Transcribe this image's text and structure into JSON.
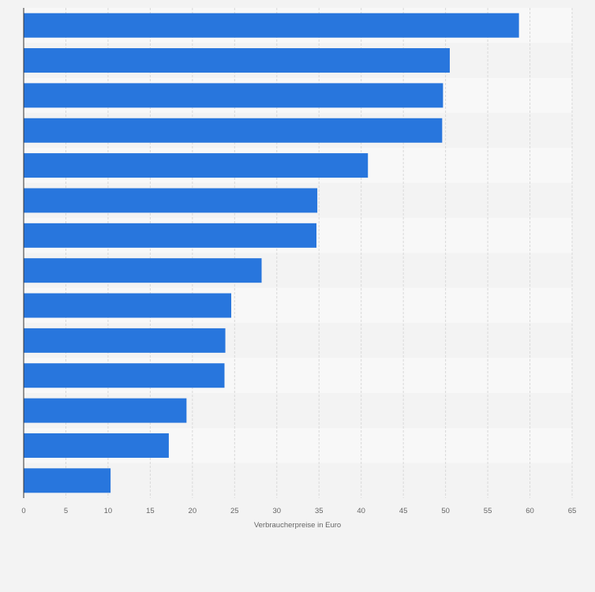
{
  "colors": {
    "bar": "#2876dd",
    "page_background": "#f3f3f3",
    "band_light": "#f8f8f8",
    "band_dark": "#f3f3f3",
    "gridline": "#d9d9d9",
    "axis_line": "#333333",
    "tick_label": "#666666"
  },
  "chart_data": {
    "type": "bar",
    "orientation": "horizontal",
    "values": [
      58.7,
      50.5,
      49.7,
      49.6,
      40.8,
      34.8,
      34.7,
      28.2,
      24.6,
      23.9,
      23.8,
      19.3,
      17.2,
      10.3
    ],
    "xlabel": "Verbraucherpreise in Euro",
    "xlim": [
      0,
      65
    ],
    "xticks": [
      "0",
      "5",
      "10",
      "15",
      "20",
      "25",
      "30",
      "35",
      "40",
      "45",
      "50",
      "55",
      "60",
      "65"
    ],
    "grid": true,
    "legend": "none"
  }
}
